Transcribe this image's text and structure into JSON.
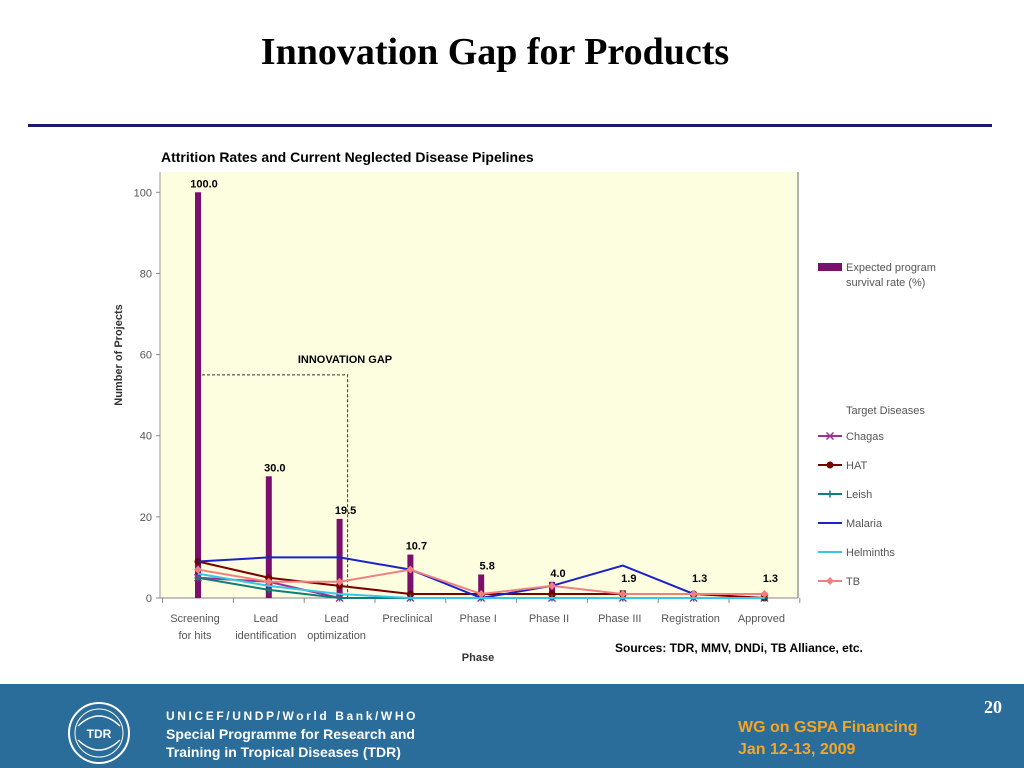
{
  "slide": {
    "title": "Innovation Gap for Products",
    "page_number": "20"
  },
  "sources": "Sources: TDR, MMV, DNDi, TB Alliance, etc.",
  "footer": {
    "org_line1": "UNICEF/UNDP/World Bank/WHO",
    "org_line2": "Special Programme for Research and",
    "org_line3": "Training in Tropical Diseases (TDR)",
    "logo_text": "TDR",
    "meeting_line1": "WG on GSPA Financing",
    "meeting_line2": "Jan 12-13, 2009"
  },
  "chart_data": {
    "type": "bar",
    "title": "Attrition Rates and Current Neglected Disease Pipelines",
    "xlabel": "Phase",
    "ylabel": "Number of Projects",
    "ylim": [
      0,
      105
    ],
    "yticks": [
      0,
      20,
      40,
      60,
      80,
      100
    ],
    "grid": false,
    "background": "#fdfde0",
    "categories": [
      "Screening for hits",
      "Lead identification",
      "Lead optimization",
      "Preclinical",
      "Phase I",
      "Phase II",
      "Phase III",
      "Registration",
      "Approved"
    ],
    "category_lines": [
      [
        "Screening",
        "for hits"
      ],
      [
        "Lead",
        "identification"
      ],
      [
        "Lead",
        "optimization"
      ],
      [
        "Preclinical"
      ],
      [
        "Phase I"
      ],
      [
        "Phase II"
      ],
      [
        "Phase III"
      ],
      [
        "Registration"
      ],
      [
        "Approved"
      ]
    ],
    "bar_series": {
      "name": "Expected program survival rate (%)",
      "color": "#7b0f6e",
      "values": [
        100.0,
        30.0,
        19.5,
        10.7,
        5.8,
        4.0,
        1.9,
        1.3,
        1.3
      ],
      "labels": [
        "100.0",
        "30.0",
        "19.5",
        "10.7",
        "5.8",
        "4.0",
        "1.9",
        "1.3",
        "1.3"
      ]
    },
    "legend_group_title": "Target Diseases",
    "series": [
      {
        "name": "Chagas",
        "color": "#a0308f",
        "marker": "x",
        "values": [
          5,
          4,
          0,
          0,
          0,
          0,
          0,
          0,
          0
        ]
      },
      {
        "name": "HAT",
        "color": "#7a0000",
        "marker": "circle",
        "values": [
          9,
          5,
          3,
          1,
          1,
          1,
          1,
          1,
          0
        ]
      },
      {
        "name": "Leish",
        "color": "#0f7f7a",
        "marker": "plus",
        "values": [
          5,
          2,
          0,
          0,
          0,
          0,
          0,
          0,
          0
        ]
      },
      {
        "name": "Malaria",
        "color": "#1a22c8",
        "marker": "none",
        "values": [
          9,
          10,
          10,
          7,
          0,
          3,
          8,
          1,
          1
        ]
      },
      {
        "name": "Helminths",
        "color": "#33c8e8",
        "marker": "none",
        "values": [
          6,
          3,
          1,
          0,
          0,
          0,
          0,
          0,
          0
        ]
      },
      {
        "name": "TB",
        "color": "#f08080",
        "marker": "diamond",
        "values": [
          7,
          4,
          4,
          7,
          1,
          3,
          1,
          1,
          1
        ]
      }
    ],
    "annotation": {
      "text": "INNOVATION GAP",
      "level": 55,
      "from_category": 0,
      "to_category": 2
    },
    "legend_position": "right"
  }
}
